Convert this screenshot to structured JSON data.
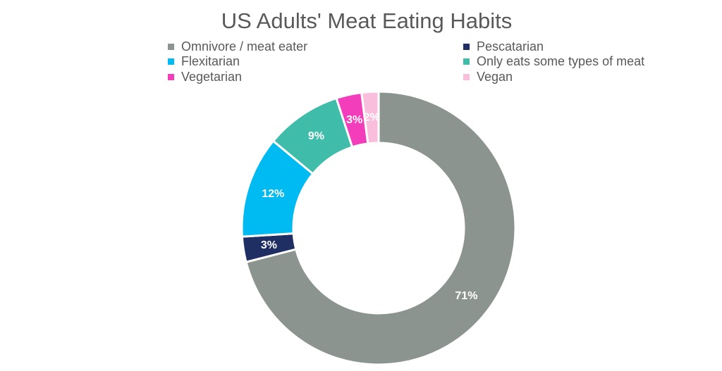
{
  "chart_data": {
    "type": "pie",
    "variant": "donut",
    "title": "US Adults' Meat Eating Habits",
    "legend_position": "top",
    "series": [
      {
        "name": "Omnivore / meat eater",
        "value": 71,
        "label": "71%",
        "color": "#8C948F"
      },
      {
        "name": "Pescatarian",
        "value": 3,
        "label": "3%",
        "color": "#1F2E63"
      },
      {
        "name": "Flexitarian",
        "value": 12,
        "label": "12%",
        "color": "#00BAF2"
      },
      {
        "name": "Only eats some types of meat",
        "value": 9,
        "label": "9%",
        "color": "#3FBCAA"
      },
      {
        "name": "Vegetarian",
        "value": 3,
        "label": "3%",
        "color": "#F23EBB"
      },
      {
        "name": "Vegan",
        "value": 2,
        "label": "2%",
        "color": "#F9BEDC"
      }
    ]
  }
}
